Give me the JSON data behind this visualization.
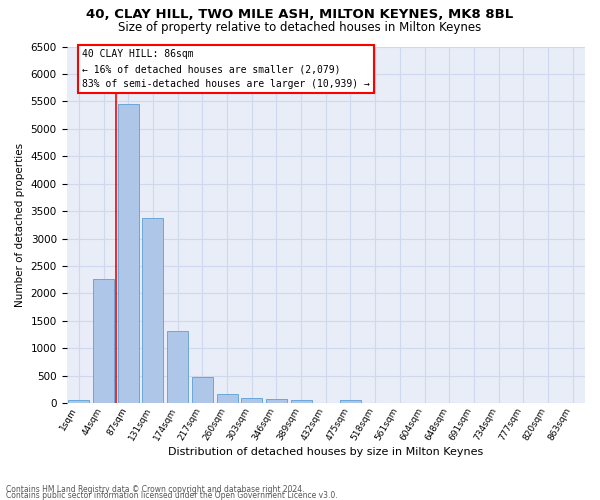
{
  "title_line1": "40, CLAY HILL, TWO MILE ASH, MILTON KEYNES, MK8 8BL",
  "title_line2": "Size of property relative to detached houses in Milton Keynes",
  "xlabel": "Distribution of detached houses by size in Milton Keynes",
  "ylabel": "Number of detached properties",
  "footer_line1": "Contains HM Land Registry data © Crown copyright and database right 2024.",
  "footer_line2": "Contains public sector information licensed under the Open Government Licence v3.0.",
  "categories": [
    "1sqm",
    "44sqm",
    "87sqm",
    "131sqm",
    "174sqm",
    "217sqm",
    "260sqm",
    "303sqm",
    "346sqm",
    "389sqm",
    "432sqm",
    "475sqm",
    "518sqm",
    "561sqm",
    "604sqm",
    "648sqm",
    "691sqm",
    "734sqm",
    "777sqm",
    "820sqm",
    "863sqm"
  ],
  "values": [
    60,
    2270,
    5450,
    3380,
    1310,
    480,
    160,
    90,
    70,
    60,
    0,
    60,
    0,
    0,
    0,
    0,
    0,
    0,
    0,
    0,
    0
  ],
  "bar_color": "#aec6e8",
  "bar_edge_color": "#5a9fd4",
  "annotation_line1": "40 CLAY HILL: 86sqm",
  "annotation_line2": "← 16% of detached houses are smaller (2,079)",
  "annotation_line3": "83% of semi-detached houses are larger (10,939) →",
  "red_line_x": 1.5,
  "annotation_box_facecolor": "white",
  "annotation_box_edgecolor": "red",
  "red_line_color": "red",
  "ylim": [
    0,
    6500
  ],
  "yticks": [
    0,
    500,
    1000,
    1500,
    2000,
    2500,
    3000,
    3500,
    4000,
    4500,
    5000,
    5500,
    6000,
    6500
  ],
  "plot_bg_color": "#e8edf8",
  "grid_color": "#d0d8ef",
  "title_fontsize": 9.5,
  "subtitle_fontsize": 8.5,
  "xlabel_fontsize": 8,
  "ylabel_fontsize": 7.5,
  "xtick_fontsize": 6.5,
  "ytick_fontsize": 7.5,
  "annotation_fontsize": 7,
  "footer_fontsize": 5.5
}
